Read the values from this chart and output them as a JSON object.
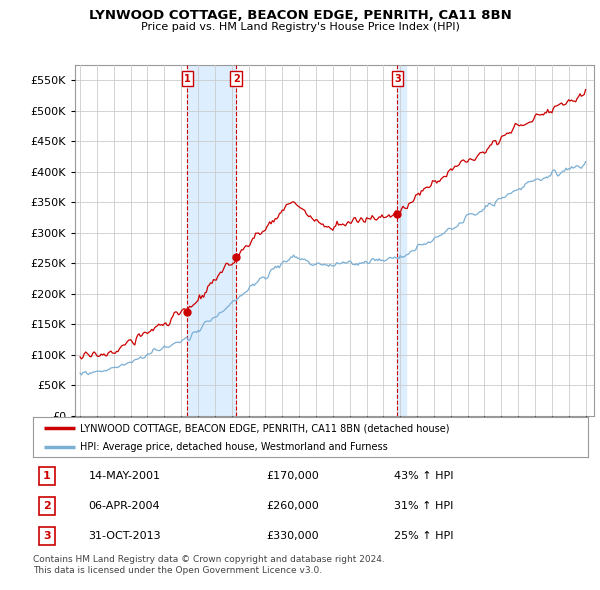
{
  "title": "LYNWOOD COTTAGE, BEACON EDGE, PENRITH, CA11 8BN",
  "subtitle": "Price paid vs. HM Land Registry's House Price Index (HPI)",
  "ylim": [
    0,
    575000
  ],
  "yticks": [
    0,
    50000,
    100000,
    150000,
    200000,
    250000,
    300000,
    350000,
    400000,
    450000,
    500000,
    550000
  ],
  "line1_color": "#cc0000",
  "line2_color": "#7bafd4",
  "shade_color": "#ddeeff",
  "legend_line1": "LYNWOOD COTTAGE, BEACON EDGE, PENRITH, CA11 8BN (detached house)",
  "legend_line2": "HPI: Average price, detached house, Westmorland and Furness",
  "sale_markers": [
    {
      "label": "1",
      "year": 2001.37,
      "price": 170000,
      "date": "14-MAY-2001",
      "pct": "43%",
      "dir": "↑"
    },
    {
      "label": "2",
      "year": 2004.27,
      "price": 260000,
      "date": "06-APR-2004",
      "pct": "31%",
      "dir": "↑"
    },
    {
      "label": "3",
      "year": 2013.83,
      "price": 330000,
      "date": "31-OCT-2013",
      "pct": "25%",
      "dir": "↑"
    }
  ],
  "footer_line1": "Contains HM Land Registry data © Crown copyright and database right 2024.",
  "footer_line2": "This data is licensed under the Open Government Licence v3.0.",
  "background_color": "#ffffff",
  "grid_color": "#cccccc",
  "table_rows": [
    {
      "num": "1",
      "date": "14-MAY-2001",
      "price": "£170,000",
      "pct": "43% ↑ HPI"
    },
    {
      "num": "2",
      "date": "06-APR-2004",
      "price": "£260,000",
      "pct": "31% ↑ HPI"
    },
    {
      "num": "3",
      "date": "31-OCT-2013",
      "price": "£330,000",
      "pct": "25% ↑ HPI"
    }
  ]
}
